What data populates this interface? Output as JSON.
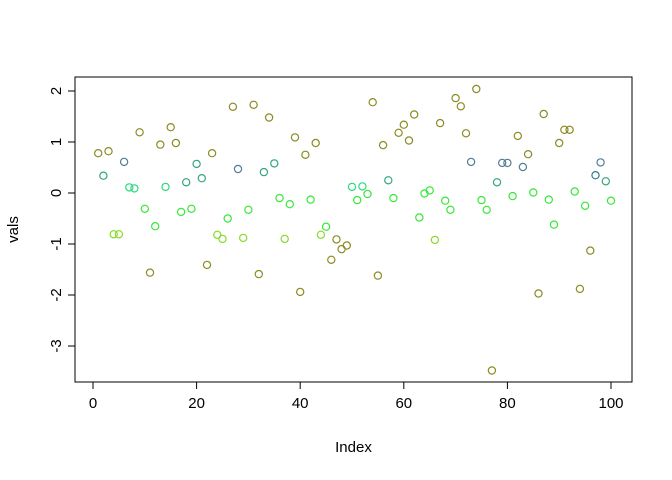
{
  "figure": {
    "background": "#ffffff",
    "frame_color": "#000000"
  },
  "chart_data": {
    "type": "scatter",
    "title": "",
    "xlabel": "Index",
    "ylabel": "vals",
    "marker": "open-circle",
    "grid": false,
    "legend": "none",
    "xlim": [
      -3,
      104
    ],
    "ylim": [
      -3.6,
      2.2
    ],
    "x_ticks": [
      0,
      20,
      40,
      60,
      80,
      100
    ],
    "y_ticks": [
      -3,
      -2,
      -1,
      0,
      1,
      2
    ],
    "palette": {
      "olive": "#8b8b22",
      "slate": "#527d95",
      "darkteal": "#2b7d85",
      "seagreen": "#32a57f",
      "spring": "#2dd881",
      "green": "#37e837",
      "chartreuse": "#85dc28"
    },
    "points": [
      [
        1,
        0.78,
        "olive"
      ],
      [
        2,
        0.34,
        "seagreen"
      ],
      [
        3,
        0.82,
        "olive"
      ],
      [
        4,
        -0.81,
        "chartreuse"
      ],
      [
        5,
        -0.81,
        "chartreuse"
      ],
      [
        6,
        0.61,
        "slate"
      ],
      [
        7,
        0.11,
        "spring"
      ],
      [
        8,
        0.09,
        "spring"
      ],
      [
        9,
        1.19,
        "olive"
      ],
      [
        10,
        -0.31,
        "green"
      ],
      [
        11,
        -1.56,
        "olive"
      ],
      [
        12,
        -0.65,
        "green"
      ],
      [
        13,
        0.95,
        "olive"
      ],
      [
        14,
        0.12,
        "spring"
      ],
      [
        15,
        1.29,
        "olive"
      ],
      [
        16,
        0.98,
        "olive"
      ],
      [
        17,
        -0.37,
        "green"
      ],
      [
        18,
        0.21,
        "seagreen"
      ],
      [
        19,
        -0.31,
        "green"
      ],
      [
        20,
        0.57,
        "seagreen"
      ],
      [
        21,
        0.29,
        "seagreen"
      ],
      [
        22,
        -1.41,
        "olive"
      ],
      [
        23,
        0.78,
        "olive"
      ],
      [
        24,
        -0.82,
        "chartreuse"
      ],
      [
        25,
        -0.9,
        "chartreuse"
      ],
      [
        26,
        -0.5,
        "green"
      ],
      [
        27,
        1.69,
        "olive"
      ],
      [
        28,
        0.47,
        "slate"
      ],
      [
        29,
        -0.88,
        "chartreuse"
      ],
      [
        30,
        -0.33,
        "green"
      ],
      [
        31,
        1.73,
        "olive"
      ],
      [
        32,
        -1.59,
        "olive"
      ],
      [
        33,
        0.41,
        "seagreen"
      ],
      [
        34,
        1.48,
        "olive"
      ],
      [
        35,
        0.58,
        "seagreen"
      ],
      [
        36,
        -0.1,
        "green"
      ],
      [
        37,
        -0.9,
        "chartreuse"
      ],
      [
        38,
        -0.22,
        "green"
      ],
      [
        39,
        1.09,
        "olive"
      ],
      [
        40,
        -1.94,
        "olive"
      ],
      [
        41,
        0.75,
        "olive"
      ],
      [
        42,
        -0.13,
        "green"
      ],
      [
        43,
        0.98,
        "olive"
      ],
      [
        44,
        -0.82,
        "chartreuse"
      ],
      [
        45,
        -0.66,
        "green"
      ],
      [
        46,
        -1.31,
        "olive"
      ],
      [
        47,
        -0.91,
        "olive"
      ],
      [
        48,
        -1.1,
        "olive"
      ],
      [
        49,
        -1.03,
        "olive"
      ],
      [
        50,
        0.12,
        "spring"
      ],
      [
        51,
        -0.14,
        "green"
      ],
      [
        52,
        0.13,
        "spring"
      ],
      [
        53,
        -0.02,
        "green"
      ],
      [
        54,
        1.78,
        "olive"
      ],
      [
        55,
        -1.62,
        "olive"
      ],
      [
        56,
        0.94,
        "olive"
      ],
      [
        57,
        0.25,
        "seagreen"
      ],
      [
        58,
        -0.1,
        "green"
      ],
      [
        59,
        1.18,
        "olive"
      ],
      [
        60,
        1.34,
        "olive"
      ],
      [
        61,
        1.03,
        "olive"
      ],
      [
        62,
        1.54,
        "olive"
      ],
      [
        63,
        -0.48,
        "green"
      ],
      [
        64,
        -0.01,
        "green"
      ],
      [
        65,
        0.05,
        "green"
      ],
      [
        66,
        -0.92,
        "chartreuse"
      ],
      [
        67,
        1.37,
        "olive"
      ],
      [
        68,
        -0.15,
        "green"
      ],
      [
        69,
        -0.33,
        "green"
      ],
      [
        70,
        1.86,
        "olive"
      ],
      [
        71,
        1.7,
        "olive"
      ],
      [
        72,
        1.17,
        "olive"
      ],
      [
        73,
        0.61,
        "slate"
      ],
      [
        74,
        2.04,
        "olive"
      ],
      [
        75,
        -0.14,
        "green"
      ],
      [
        76,
        -0.33,
        "green"
      ],
      [
        77,
        -3.48,
        "olive"
      ],
      [
        78,
        0.21,
        "seagreen"
      ],
      [
        79,
        0.59,
        "slate"
      ],
      [
        80,
        0.59,
        "slate"
      ],
      [
        81,
        -0.06,
        "green"
      ],
      [
        82,
        1.12,
        "olive"
      ],
      [
        83,
        0.51,
        "slate"
      ],
      [
        84,
        0.76,
        "olive"
      ],
      [
        85,
        0.01,
        "green"
      ],
      [
        86,
        -1.97,
        "olive"
      ],
      [
        87,
        1.55,
        "olive"
      ],
      [
        88,
        -0.13,
        "green"
      ],
      [
        89,
        -0.62,
        "green"
      ],
      [
        90,
        0.98,
        "olive"
      ],
      [
        91,
        1.24,
        "olive"
      ],
      [
        92,
        1.24,
        "olive"
      ],
      [
        93,
        0.03,
        "green"
      ],
      [
        94,
        -1.88,
        "olive"
      ],
      [
        95,
        -0.25,
        "green"
      ],
      [
        96,
        -1.13,
        "olive"
      ],
      [
        97,
        0.35,
        "darkteal"
      ],
      [
        98,
        0.6,
        "slate"
      ],
      [
        99,
        0.23,
        "seagreen"
      ],
      [
        100,
        -0.15,
        "green"
      ]
    ]
  }
}
